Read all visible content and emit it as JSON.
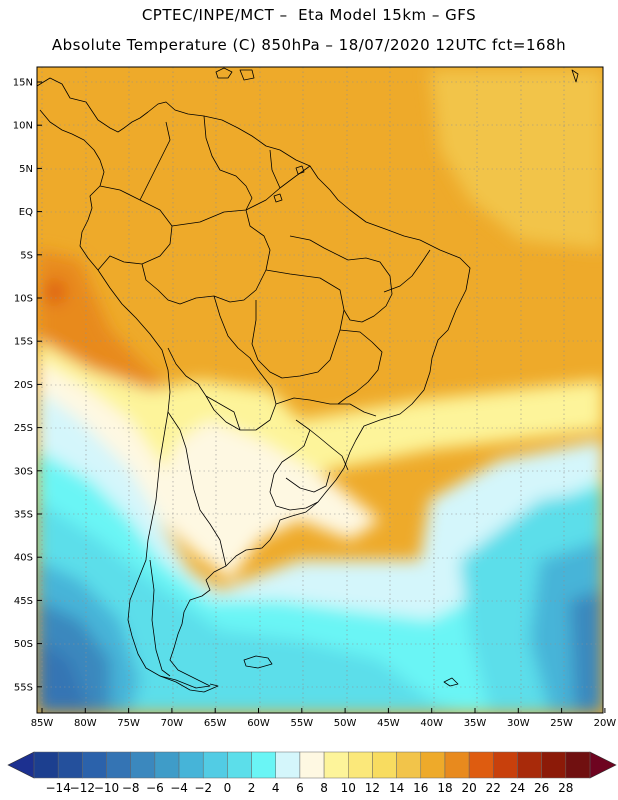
{
  "header": {
    "line1": "CPTEC/INPE/MCT –  Eta Model 15km – GFS",
    "line2": "Absolute Temperature (C) 850hPa – 18/07/2020 12UTC fct=168h"
  },
  "map": {
    "lat_labels": [
      "15N",
      "10N",
      "5N",
      "EQ",
      "5S",
      "10S",
      "15S",
      "20S",
      "25S",
      "30S",
      "35S",
      "40S",
      "45S",
      "50S",
      "55S"
    ],
    "lon_labels": [
      "85W",
      "80W",
      "75W",
      "70W",
      "65W",
      "60W",
      "55W",
      "50W",
      "45W",
      "40W",
      "35W",
      "30W",
      "25W",
      "20W"
    ],
    "extent": {
      "lon": [
        -85.5,
        -20
      ],
      "lat": [
        -58,
        16.5
      ]
    }
  },
  "colorbar": {
    "labels": [
      "-14",
      "-12",
      "-10",
      "-8",
      "-6",
      "-4",
      "-2",
      "0",
      "2",
      "4",
      "6",
      "8",
      "10",
      "12",
      "14",
      "16",
      "18",
      "20",
      "22",
      "24",
      "26",
      "28"
    ],
    "colors": [
      "#1c3f8f",
      "#24509c",
      "#2b62ab",
      "#3474b4",
      "#3b88be",
      "#3f9cc8",
      "#46b4d8",
      "#52cce4",
      "#5cdeea",
      "#6af5f5",
      "#d4f6fb",
      "#fef8e2",
      "#fdf49a",
      "#fbe87a",
      "#f8dc60",
      "#f2c44a",
      "#eeaa2a",
      "#e88a1e",
      "#de5c10",
      "#c8400c",
      "#a82a0a",
      "#8c1a08",
      "#701010"
    ],
    "end_left": "#1c3090",
    "end_right": "#6e0420"
  }
}
